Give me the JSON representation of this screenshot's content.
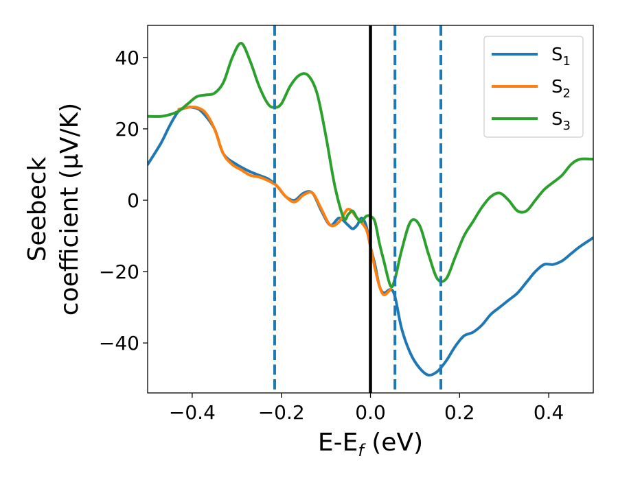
{
  "chart_data": {
    "type": "line",
    "title": "",
    "xlabel": {
      "main": "E-E",
      "sub": "f",
      "suffix": " (eV)"
    },
    "ylabel": {
      "line1": "Seebeck",
      "line2": "coefficient  (μV/K)"
    },
    "xlim": [
      -0.5,
      0.5
    ],
    "ylim": [
      -54,
      49
    ],
    "xticks": [
      -0.4,
      -0.2,
      0.0,
      0.2,
      0.4
    ],
    "xtick_labels": [
      "−0.4",
      "−0.2",
      "0.0",
      "0.2",
      "0.4"
    ],
    "yticks": [
      -40,
      -20,
      0,
      20,
      40
    ],
    "ytick_labels": [
      "−40",
      "−20",
      "0",
      "20",
      "40"
    ],
    "grid": false,
    "legend_position": "top-right",
    "series": [
      {
        "name": "S1",
        "label_main": "S",
        "label_sub": "1",
        "color": "#1f77b4",
        "x": [
          -0.5,
          -0.47,
          -0.45,
          -0.43,
          -0.41,
          -0.4,
          -0.38,
          -0.35,
          -0.33,
          -0.3,
          -0.27,
          -0.25,
          -0.23,
          -0.21,
          -0.19,
          -0.17,
          -0.15,
          -0.13,
          -0.11,
          -0.09,
          -0.07,
          -0.05,
          -0.04,
          -0.03,
          -0.02,
          -0.01,
          0.0,
          0.01,
          0.02,
          0.03,
          0.045,
          0.055,
          0.07,
          0.09,
          0.11,
          0.13,
          0.15,
          0.17,
          0.19,
          0.21,
          0.23,
          0.25,
          0.27,
          0.29,
          0.31,
          0.33,
          0.35,
          0.37,
          0.39,
          0.41,
          0.43,
          0.45,
          0.47,
          0.5
        ],
        "y": [
          10,
          16,
          21,
          25,
          26,
          26,
          25,
          20,
          13,
          10,
          8,
          7,
          6,
          4,
          1,
          0,
          2,
          2,
          -3,
          -7,
          -5,
          -7,
          -8,
          -7,
          -5,
          -7,
          -13,
          -18,
          -24,
          -26,
          -25,
          -27,
          -36,
          -43,
          -47,
          -49,
          -48,
          -45,
          -41,
          -38,
          -37,
          -35,
          -32,
          -30,
          -28,
          -26,
          -23,
          -20,
          -18,
          -18,
          -17,
          -15,
          -13,
          -10.5
        ]
      },
      {
        "name": "S2",
        "label_main": "S",
        "label_sub": "2",
        "color": "#ff7f0e",
        "x": [
          -0.43,
          -0.41,
          -0.39,
          -0.37,
          -0.35,
          -0.33,
          -0.31,
          -0.29,
          -0.27,
          -0.25,
          -0.23,
          -0.21,
          -0.19,
          -0.17,
          -0.15,
          -0.13,
          -0.11,
          -0.09,
          -0.07,
          -0.05,
          -0.03,
          -0.01,
          0.0,
          0.01,
          0.02,
          0.03,
          0.045
        ],
        "y": [
          25.5,
          26,
          26,
          24.5,
          20,
          13,
          10,
          8.5,
          7,
          6.5,
          5.5,
          4,
          1,
          -0.5,
          1.5,
          2,
          -2.5,
          -7,
          -6,
          -2.5,
          -5,
          -8,
          -13,
          -19,
          -24,
          -26.5,
          -25
        ]
      },
      {
        "name": "S3",
        "label_main": "S",
        "label_sub": "3",
        "color": "#2ca02c",
        "x": [
          -0.5,
          -0.47,
          -0.45,
          -0.43,
          -0.41,
          -0.39,
          -0.37,
          -0.35,
          -0.33,
          -0.31,
          -0.29,
          -0.27,
          -0.25,
          -0.23,
          -0.215,
          -0.2,
          -0.18,
          -0.16,
          -0.14,
          -0.12,
          -0.1,
          -0.08,
          -0.06,
          -0.05,
          -0.04,
          -0.03,
          -0.02,
          -0.01,
          0.0,
          0.01,
          0.02,
          0.03,
          0.045,
          0.055,
          0.07,
          0.09,
          0.11,
          0.13,
          0.15,
          0.17,
          0.19,
          0.21,
          0.23,
          0.25,
          0.27,
          0.29,
          0.31,
          0.33,
          0.35,
          0.37,
          0.39,
          0.41,
          0.43,
          0.45,
          0.47,
          0.5
        ],
        "y": [
          23.5,
          23.5,
          24,
          25,
          27,
          29,
          29.5,
          30,
          33,
          40,
          44,
          39,
          32,
          27,
          26,
          27,
          32,
          35,
          35,
          30,
          18,
          4,
          -5,
          -4,
          -3,
          -5,
          -6,
          -4.5,
          -4.5,
          -6,
          -12,
          -17,
          -24,
          -22,
          -14,
          -6,
          -7,
          -15,
          -22,
          -22,
          -16,
          -10,
          -6,
          -2,
          1,
          2,
          0,
          -3,
          -3,
          0,
          3,
          5,
          7,
          10,
          11.5,
          11.5
        ]
      }
    ],
    "vlines": [
      {
        "x": 0.0,
        "color": "#000000",
        "style": "solid"
      },
      {
        "x": -0.215,
        "color": "#1f77b4",
        "style": "dashed"
      },
      {
        "x": 0.055,
        "color": "#1f77b4",
        "style": "dashed"
      },
      {
        "x": 0.158,
        "color": "#1f77b4",
        "style": "dashed"
      }
    ]
  }
}
